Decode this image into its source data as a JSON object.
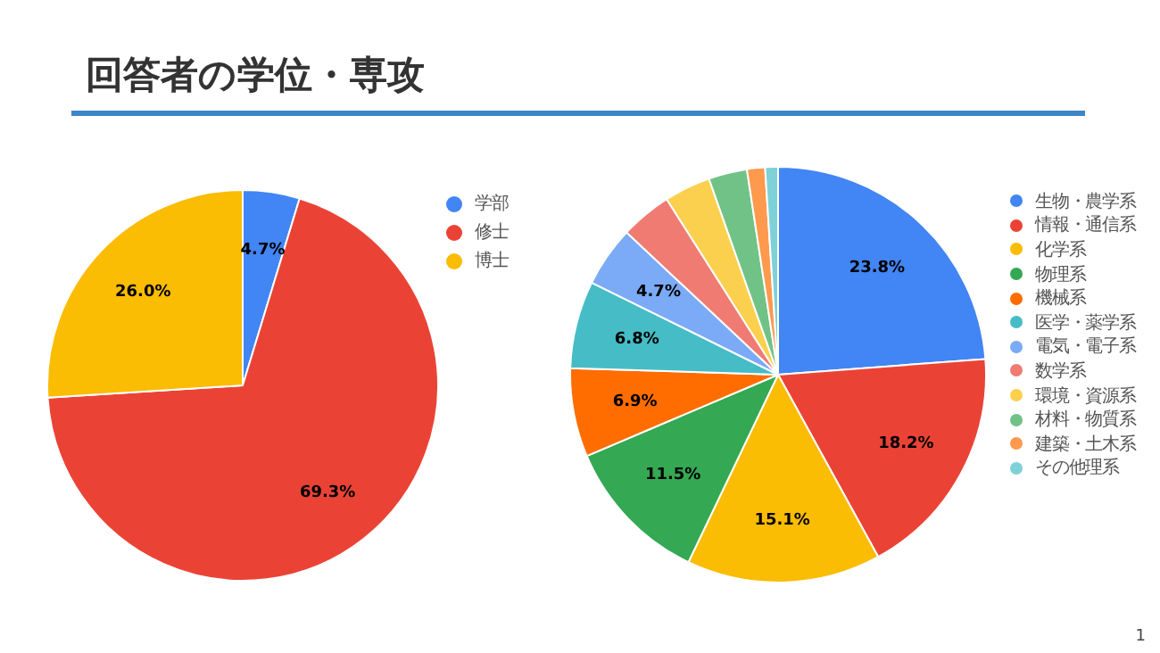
{
  "chart_data": [
    {
      "type": "pie",
      "title": "回答者の学位・専攻",
      "categories": [
        "学部",
        "修士",
        "博士"
      ],
      "values": [
        4.7,
        69.3,
        26.0
      ],
      "colors": [
        "#4285f4",
        "#ea4335",
        "#fbbc04"
      ],
      "value_labels": [
        "4.7%",
        "69.3%",
        "26.0%"
      ],
      "legend": "right"
    },
    {
      "type": "pie",
      "categories": [
        "生物・農学系",
        "情報・通信系",
        "化学系",
        "物理系",
        "機械系",
        "医学・薬学系",
        "電気・電子系",
        "数学系",
        "環境・資源系",
        "材料・物質系",
        "建築・土木系",
        "その他理系"
      ],
      "values": [
        23.8,
        18.2,
        15.1,
        11.5,
        6.9,
        6.8,
        4.7,
        4.0,
        3.6,
        3.0,
        1.4,
        1.0
      ],
      "colors": [
        "#4285f4",
        "#ea4335",
        "#fbbc04",
        "#34a853",
        "#ff6d01",
        "#46bdc6",
        "#7baaf7",
        "#f07b72",
        "#fcd04f",
        "#71c287",
        "#ff994d",
        "#7ed1d7"
      ],
      "value_labels": [
        "23.8%",
        "18.2%",
        "15.1%",
        "11.5%",
        "6.9%",
        "6.8%",
        "4.7%",
        null,
        null,
        null,
        null,
        null
      ],
      "legend": "right",
      "annotations": [
        "1"
      ]
    }
  ]
}
